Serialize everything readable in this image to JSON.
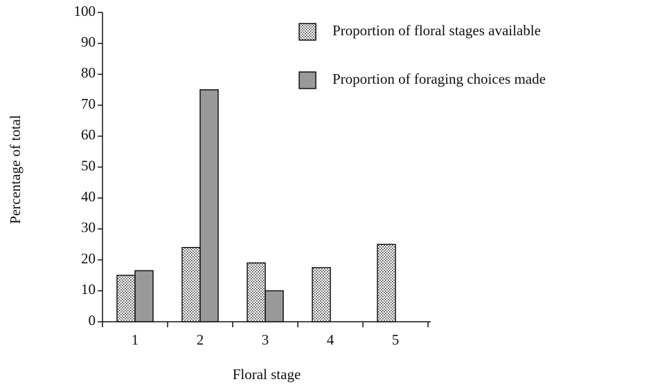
{
  "chart_data": {
    "type": "bar",
    "xlabel": "Floral stage",
    "ylabel": "Percentage of total",
    "categories": [
      "1",
      "2",
      "3",
      "4",
      "5"
    ],
    "series": [
      {
        "name": "Proportion of floral stages available",
        "color": "#ffffff",
        "pattern": "dots",
        "values": [
          15,
          24,
          19,
          17.5,
          25
        ]
      },
      {
        "name": "Proportion of foraging choices made",
        "color": "#999999",
        "values": [
          16.5,
          75,
          10,
          0,
          0
        ]
      }
    ],
    "ylim": [
      0,
      100
    ],
    "yticks": [
      0,
      10,
      20,
      30,
      40,
      50,
      60,
      70,
      80,
      90,
      100
    ],
    "legend": "upper right"
  }
}
